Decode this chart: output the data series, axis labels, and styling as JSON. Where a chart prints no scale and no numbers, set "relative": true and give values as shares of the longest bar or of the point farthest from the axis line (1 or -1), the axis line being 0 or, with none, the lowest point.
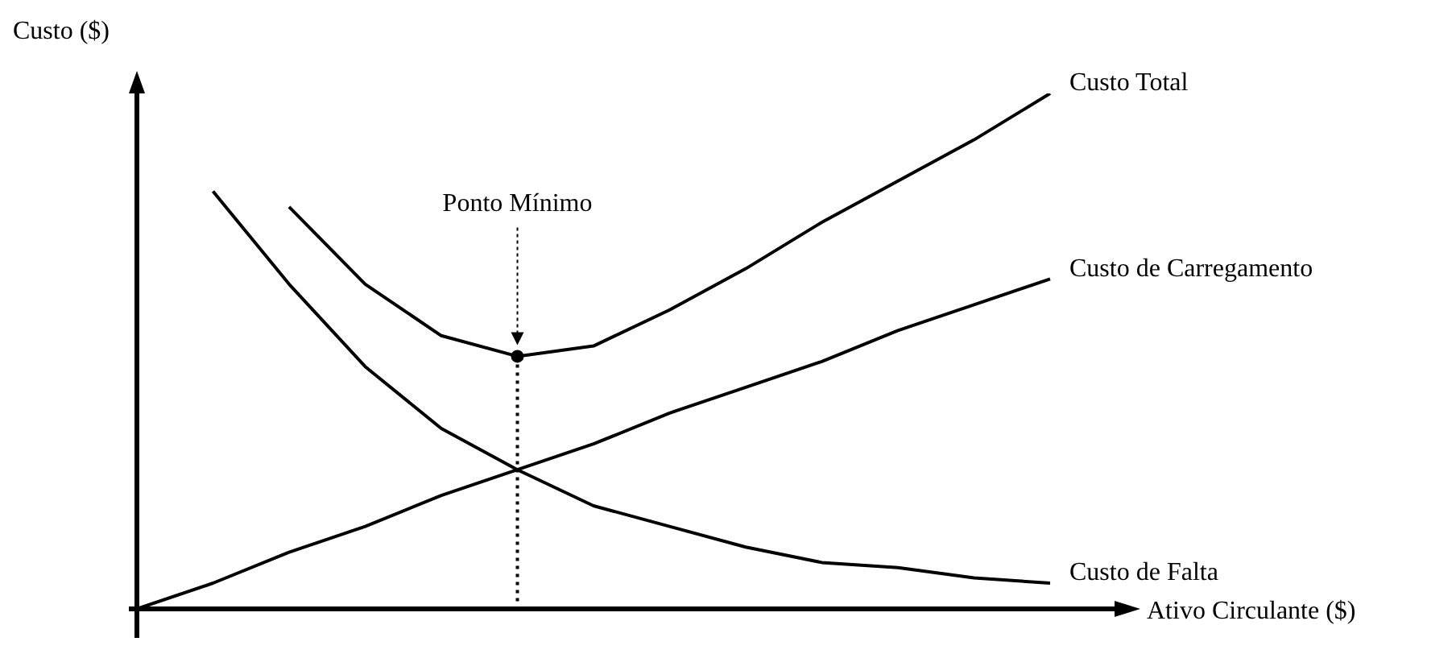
{
  "chart_data": {
    "type": "line",
    "relative": true,
    "xlabel": "Ativo Circulante ($)",
    "ylabel": "Custo ($)",
    "categories": [
      null,
      null,
      null,
      null,
      null,
      null,
      null,
      null,
      null,
      null,
      null,
      null,
      null
    ],
    "legend": false,
    "marker": "none",
    "series": [
      {
        "name": "Custo Total",
        "color": "#000000",
        "values": [
          null,
          null,
          0.78,
          0.63,
          0.53,
          0.49,
          0.51,
          0.58,
          0.66,
          0.75,
          0.83,
          0.91,
          1
        ]
      },
      {
        "name": "Custo de Carregamento",
        "color": "#000000",
        "values": [
          0,
          0.05,
          0.11,
          0.16,
          0.22,
          0.27,
          0.32,
          0.38,
          0.43,
          0.48,
          0.54,
          0.59,
          0.64
        ]
      },
      {
        "name": "Custo de Falta",
        "color": "#000000",
        "values": [
          null,
          0.81,
          0.63,
          0.47,
          0.35,
          0.27,
          0.2,
          0.16,
          0.12,
          0.09,
          0.08,
          0.06,
          0.05
        ]
      }
    ],
    "annotations": [
      "Ponto Mínimo"
    ]
  }
}
